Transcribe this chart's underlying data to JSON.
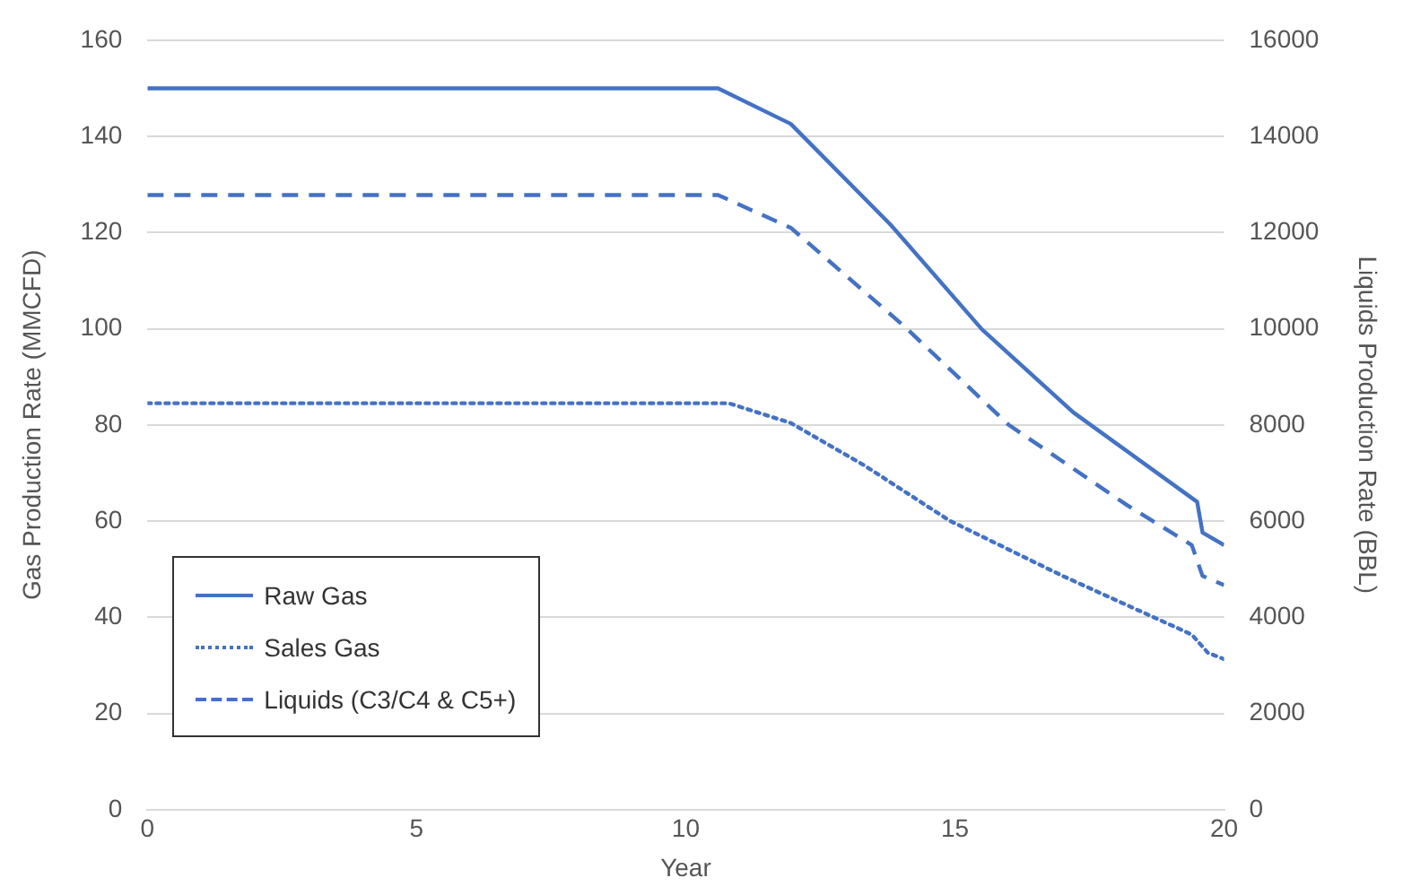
{
  "chart_data": {
    "type": "line",
    "xlabel": "Year",
    "ylabel": "Gas Production Rate (MMCFD)",
    "y2label": "Liquids Production Rate (BBL)",
    "xlim": [
      0,
      20
    ],
    "xticks": [
      0,
      5,
      10,
      15,
      20
    ],
    "ylim": [
      0,
      160
    ],
    "yticks": [
      0,
      20,
      40,
      60,
      80,
      100,
      120,
      140,
      160
    ],
    "y2lim": [
      0,
      16000
    ],
    "y2ticks": [
      0,
      2000,
      4000,
      6000,
      8000,
      10000,
      12000,
      14000,
      16000
    ],
    "grid": "y",
    "legend": "bottom left",
    "marker": "none",
    "series": [
      {
        "name": "Raw Gas",
        "color": "#4472c4",
        "line_style": "solid",
        "x": [
          0,
          10.6,
          11.95,
          13.8,
          15.5,
          17.2,
          19.5,
          19.6,
          20
        ],
        "values": [
          150,
          150,
          142.6,
          121.7,
          99.9,
          82.6,
          64,
          57.6,
          55
        ]
      },
      {
        "name": "Sales Gas",
        "color": "#4472c4",
        "line_style": "dotted",
        "x": [
          0,
          10.8,
          11.95,
          13.3,
          14.9,
          17.0,
          19.4,
          19.7,
          20
        ],
        "values": [
          84.5,
          84.5,
          80.4,
          71.7,
          60.1,
          48.6,
          36.4,
          32.6,
          31.3
        ]
      },
      {
        "name": "Liquids (C3/C4 & C5+)",
        "color": "#4472c4",
        "line_style": "dashed",
        "axis": "y2",
        "x": [
          0,
          10.6,
          11.95,
          14.06,
          16.0,
          18.2,
          19.4,
          19.6,
          20
        ],
        "values": [
          12780,
          12780,
          12100,
          10050,
          8000,
          6330,
          5500,
          4860,
          4670
        ]
      }
    ]
  }
}
